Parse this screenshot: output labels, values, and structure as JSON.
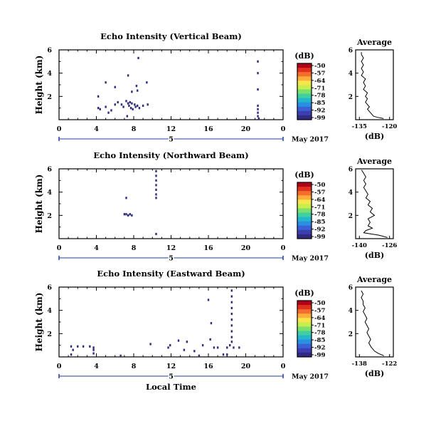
{
  "common": {
    "xlabel": "Local Time",
    "date_label": "May 2017",
    "day_marker": "5",
    "height_label": "Height (km)",
    "cbar_unit": "(dB)",
    "avg_title": "Average",
    "avg_xlabel": "(dB)"
  },
  "colorbar": {
    "ticks": [
      "-50",
      "-57",
      "-64",
      "-71",
      "-78",
      "-85",
      "-92",
      "-99"
    ],
    "colors": [
      "#b0001a",
      "#e0301e",
      "#f46d2d",
      "#fbae3c",
      "#f6e54b",
      "#c8ee4e",
      "#7be06c",
      "#3fcfa0",
      "#23b6cc",
      "#2a8fe0",
      "#3a5fd6",
      "#3d3fb0",
      "#322a80"
    ]
  },
  "chart_data": [
    {
      "type": "heatmap",
      "title": "Echo Intensity (Vertical Beam)",
      "xlabel": "",
      "ylabel": "Height (km)",
      "xlim": [
        0,
        24
      ],
      "ylim": [
        0,
        6
      ],
      "xticks": [
        "0",
        "4",
        "8",
        "12",
        "16",
        "20",
        "0"
      ],
      "yticks": [
        "2",
        "4",
        "6"
      ],
      "points": [
        {
          "t": 4.2,
          "h": 1.0
        },
        {
          "t": 4.4,
          "h": 0.9
        },
        {
          "t": 5.0,
          "h": 1.1
        },
        {
          "t": 5.3,
          "h": 0.6
        },
        {
          "t": 5.6,
          "h": 0.8
        },
        {
          "t": 6.0,
          "h": 1.3
        },
        {
          "t": 6.3,
          "h": 1.5
        },
        {
          "t": 6.7,
          "h": 1.3
        },
        {
          "t": 6.9,
          "h": 1.1
        },
        {
          "t": 7.2,
          "h": 1.6
        },
        {
          "t": 7.4,
          "h": 1.4
        },
        {
          "t": 7.5,
          "h": 1.2
        },
        {
          "t": 7.6,
          "h": 1.5
        },
        {
          "t": 7.7,
          "h": 1.0
        },
        {
          "t": 7.8,
          "h": 1.4
        },
        {
          "t": 7.9,
          "h": 0.9
        },
        {
          "t": 8.1,
          "h": 1.3
        },
        {
          "t": 8.2,
          "h": 1.1
        },
        {
          "t": 8.4,
          "h": 1.2
        },
        {
          "t": 8.6,
          "h": 1.0
        },
        {
          "t": 9.0,
          "h": 1.2
        },
        {
          "t": 9.5,
          "h": 1.3
        },
        {
          "t": 5.0,
          "h": 3.2
        },
        {
          "t": 6.0,
          "h": 2.8
        },
        {
          "t": 7.4,
          "h": 3.8
        },
        {
          "t": 7.8,
          "h": 2.4
        },
        {
          "t": 8.3,
          "h": 2.9
        },
        {
          "t": 8.4,
          "h": 2.5
        },
        {
          "t": 8.5,
          "h": 5.3
        },
        {
          "t": 9.4,
          "h": 3.2
        },
        {
          "t": 4.2,
          "h": 2.0
        },
        {
          "t": 7.3,
          "h": 0.3
        },
        {
          "t": 21.3,
          "h": 5.0
        },
        {
          "t": 21.3,
          "h": 4.0
        },
        {
          "t": 21.3,
          "h": 2.6
        },
        {
          "t": 21.3,
          "h": 1.2
        },
        {
          "t": 21.3,
          "h": 0.9
        },
        {
          "t": 21.3,
          "h": 0.6
        },
        {
          "t": 21.3,
          "h": 0.3
        },
        {
          "t": 21.4,
          "h": 0.1
        }
      ],
      "average": {
        "xlim": [
          -135,
          -120
        ],
        "xticks": [
          "-135",
          "-120"
        ],
        "profile": [
          {
            "h": 0.1,
            "v": -123
          },
          {
            "h": 0.2,
            "v": -126
          },
          {
            "h": 0.3,
            "v": -128
          },
          {
            "h": 0.5,
            "v": -129
          },
          {
            "h": 0.7,
            "v": -130
          },
          {
            "h": 0.9,
            "v": -131
          },
          {
            "h": 1.1,
            "v": -130
          },
          {
            "h": 1.3,
            "v": -131
          },
          {
            "h": 1.5,
            "v": -132
          },
          {
            "h": 1.8,
            "v": -131
          },
          {
            "h": 2.0,
            "v": -132
          },
          {
            "h": 2.3,
            "v": -131
          },
          {
            "h": 2.6,
            "v": -133
          },
          {
            "h": 2.9,
            "v": -132
          },
          {
            "h": 3.2,
            "v": -133
          },
          {
            "h": 3.5,
            "v": -132
          },
          {
            "h": 3.8,
            "v": -134
          },
          {
            "h": 4.1,
            "v": -133
          },
          {
            "h": 4.4,
            "v": -134
          },
          {
            "h": 4.7,
            "v": -133
          },
          {
            "h": 5.0,
            "v": -134
          },
          {
            "h": 5.3,
            "v": -133
          },
          {
            "h": 5.6,
            "v": -134
          },
          {
            "h": 5.8,
            "v": -134
          }
        ]
      }
    },
    {
      "type": "heatmap",
      "title": "Echo Intensity (Northward Beam)",
      "xlabel": "",
      "ylabel": "Height (km)",
      "xlim": [
        0,
        24
      ],
      "ylim": [
        0,
        6
      ],
      "xticks": [
        "0",
        "4",
        "8",
        "12",
        "16",
        "20",
        "0"
      ],
      "yticks": [
        "2",
        "4",
        "6"
      ],
      "points": [
        {
          "t": 7.0,
          "h": 2.1
        },
        {
          "t": 7.2,
          "h": 2.1
        },
        {
          "t": 7.4,
          "h": 2.0
        },
        {
          "t": 7.6,
          "h": 2.1
        },
        {
          "t": 7.8,
          "h": 2.0
        },
        {
          "t": 7.2,
          "h": 3.5
        },
        {
          "t": 10.4,
          "h": 5.8
        },
        {
          "t": 10.4,
          "h": 5.4
        },
        {
          "t": 10.4,
          "h": 5.0
        },
        {
          "t": 10.4,
          "h": 4.6
        },
        {
          "t": 10.4,
          "h": 4.2
        },
        {
          "t": 10.4,
          "h": 3.8
        },
        {
          "t": 10.4,
          "h": 3.5
        },
        {
          "t": 10.4,
          "h": 0.4
        }
      ],
      "average": {
        "xlim": [
          -140,
          -126
        ],
        "xticks": [
          "-140",
          "-126"
        ],
        "profile": [
          {
            "h": 0.1,
            "v": -127
          },
          {
            "h": 0.3,
            "v": -131
          },
          {
            "h": 0.5,
            "v": -138
          },
          {
            "h": 0.7,
            "v": -137
          },
          {
            "h": 0.9,
            "v": -134
          },
          {
            "h": 1.1,
            "v": -136
          },
          {
            "h": 1.4,
            "v": -135
          },
          {
            "h": 1.7,
            "v": -136
          },
          {
            "h": 2.0,
            "v": -133
          },
          {
            "h": 2.3,
            "v": -135
          },
          {
            "h": 2.6,
            "v": -134
          },
          {
            "h": 2.9,
            "v": -136
          },
          {
            "h": 3.2,
            "v": -135
          },
          {
            "h": 3.5,
            "v": -137
          },
          {
            "h": 3.8,
            "v": -136
          },
          {
            "h": 4.1,
            "v": -137
          },
          {
            "h": 4.4,
            "v": -138
          },
          {
            "h": 4.7,
            "v": -137
          },
          {
            "h": 5.0,
            "v": -138
          },
          {
            "h": 5.3,
            "v": -137
          },
          {
            "h": 5.6,
            "v": -138
          },
          {
            "h": 5.9,
            "v": -139
          }
        ]
      }
    },
    {
      "type": "heatmap",
      "title": "Echo Intensity (Eastward Beam)",
      "xlabel": "Local Time",
      "ylabel": "Height (km)",
      "xlim": [
        0,
        24
      ],
      "ylim": [
        0,
        6
      ],
      "xticks": [
        "0",
        "4",
        "8",
        "12",
        "16",
        "20",
        "0"
      ],
      "yticks": [
        "2",
        "4",
        "6"
      ],
      "points": [
        {
          "t": 1.3,
          "h": 0.9
        },
        {
          "t": 1.5,
          "h": 0.6
        },
        {
          "t": 2.0,
          "h": 0.9
        },
        {
          "t": 2.6,
          "h": 0.9
        },
        {
          "t": 3.3,
          "h": 0.9
        },
        {
          "t": 3.7,
          "h": 0.8
        },
        {
          "t": 3.7,
          "h": 0.6
        },
        {
          "t": 3.7,
          "h": 0.3
        },
        {
          "t": 1.3,
          "h": 0.2
        },
        {
          "t": 6.6,
          "h": 0.1
        },
        {
          "t": 9.8,
          "h": 1.1
        },
        {
          "t": 11.7,
          "h": 0.8
        },
        {
          "t": 11.9,
          "h": 1.0
        },
        {
          "t": 12.8,
          "h": 1.4
        },
        {
          "t": 13.4,
          "h": 0.6
        },
        {
          "t": 13.7,
          "h": 1.3
        },
        {
          "t": 14.5,
          "h": 0.5
        },
        {
          "t": 15.4,
          "h": 1.0
        },
        {
          "t": 16.2,
          "h": 1.5
        },
        {
          "t": 16.0,
          "h": 4.9
        },
        {
          "t": 16.3,
          "h": 2.9
        },
        {
          "t": 16.6,
          "h": 0.8
        },
        {
          "t": 17.0,
          "h": 0.8
        },
        {
          "t": 18.0,
          "h": 0.8
        },
        {
          "t": 18.5,
          "h": 5.7
        },
        {
          "t": 18.5,
          "h": 5.2
        },
        {
          "t": 18.5,
          "h": 4.7
        },
        {
          "t": 18.5,
          "h": 4.2
        },
        {
          "t": 18.5,
          "h": 3.7
        },
        {
          "t": 18.5,
          "h": 3.2
        },
        {
          "t": 18.5,
          "h": 2.7
        },
        {
          "t": 18.5,
          "h": 2.2
        },
        {
          "t": 18.5,
          "h": 1.7
        },
        {
          "t": 18.5,
          "h": 1.3
        },
        {
          "t": 18.3,
          "h": 1.0
        },
        {
          "t": 18.7,
          "h": 0.8
        },
        {
          "t": 19.3,
          "h": 0.8
        },
        {
          "t": 18.0,
          "h": 0.2
        },
        {
          "t": 15.0,
          "h": 0.1
        },
        {
          "t": 17.6,
          "h": 0.2
        }
      ],
      "average": {
        "xlim": [
          -138,
          -122
        ],
        "xticks": [
          "-138",
          "-122"
        ],
        "profile": [
          {
            "h": 0.1,
            "v": -125
          },
          {
            "h": 0.3,
            "v": -128
          },
          {
            "h": 0.5,
            "v": -130
          },
          {
            "h": 0.7,
            "v": -131
          },
          {
            "h": 0.9,
            "v": -132
          },
          {
            "h": 1.2,
            "v": -133
          },
          {
            "h": 1.5,
            "v": -132
          },
          {
            "h": 1.8,
            "v": -133
          },
          {
            "h": 2.1,
            "v": -134
          },
          {
            "h": 2.4,
            "v": -133
          },
          {
            "h": 2.7,
            "v": -134
          },
          {
            "h": 3.0,
            "v": -135
          },
          {
            "h": 3.3,
            "v": -134
          },
          {
            "h": 3.6,
            "v": -135
          },
          {
            "h": 3.9,
            "v": -136
          },
          {
            "h": 4.2,
            "v": -135
          },
          {
            "h": 4.5,
            "v": -136
          },
          {
            "h": 4.8,
            "v": -136
          },
          {
            "h": 5.1,
            "v": -137
          },
          {
            "h": 5.4,
            "v": -136
          },
          {
            "h": 5.7,
            "v": -137
          }
        ]
      }
    }
  ]
}
